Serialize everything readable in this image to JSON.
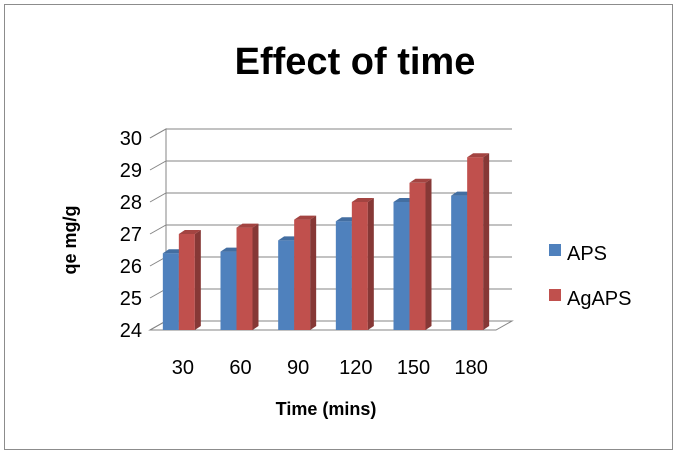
{
  "chart_data": {
    "type": "bar",
    "title": "Effect of time",
    "xlabel": "Time (mins)",
    "ylabel": "qe mg/g",
    "categories": [
      "30",
      "60",
      "90",
      "120",
      "150",
      "180"
    ],
    "series": [
      {
        "name": "APS",
        "values": [
          26.4,
          26.45,
          26.8,
          27.4,
          28.0,
          28.2
        ],
        "color": "#4f81bd"
      },
      {
        "name": "AgAPS",
        "values": [
          27.0,
          27.2,
          27.45,
          28.0,
          28.6,
          29.4
        ],
        "color": "#c0504d"
      }
    ],
    "ylim": [
      24,
      30
    ],
    "yticks": [
      24,
      25,
      26,
      27,
      28,
      29,
      30
    ],
    "grid": true,
    "three_d": true,
    "legend_position": "right"
  }
}
